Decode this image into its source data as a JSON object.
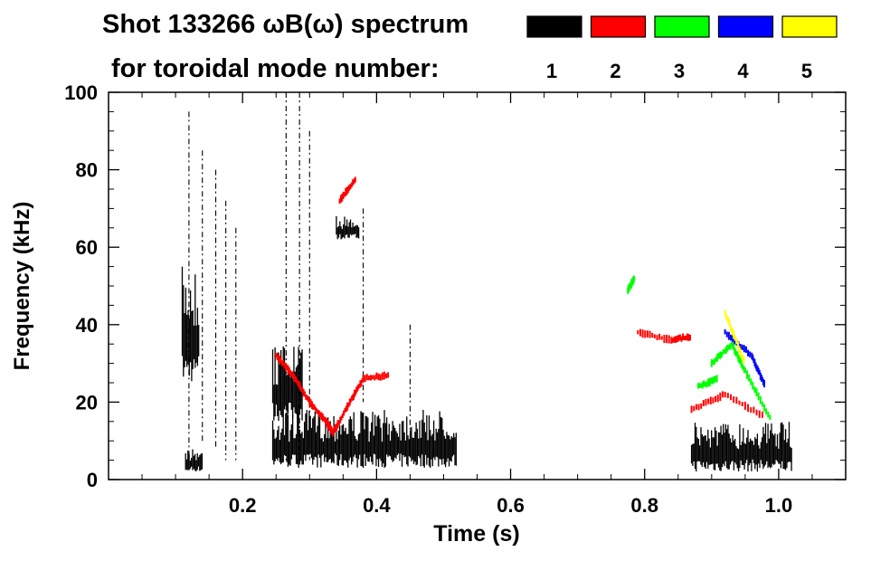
{
  "chart_data": {
    "type": "scatter",
    "title_line1": "Shot 133266 ωB(ω) spectrum",
    "title_line2": "for toroidal mode number:",
    "xlabel": "Time (s)",
    "ylabel": "Frequency (kHz)",
    "xlim": [
      0.0,
      1.1
    ],
    "ylim": [
      0,
      100
    ],
    "xticks": [
      {
        "value": 0.2,
        "label": "0.2"
      },
      {
        "value": 0.4,
        "label": "0.4"
      },
      {
        "value": 0.6,
        "label": "0.6"
      },
      {
        "value": 0.8,
        "label": "0.8"
      },
      {
        "value": 1.0,
        "label": "1.0"
      }
    ],
    "yticks": [
      {
        "value": 0,
        "label": "0"
      },
      {
        "value": 20,
        "label": "20"
      },
      {
        "value": 40,
        "label": "40"
      },
      {
        "value": 60,
        "label": "60"
      },
      {
        "value": 80,
        "label": "80"
      },
      {
        "value": 100,
        "label": "100"
      }
    ],
    "legend": [
      {
        "label": "1",
        "color": "#000000"
      },
      {
        "label": "2",
        "color": "#ff0000"
      },
      {
        "label": "3",
        "color": "#00ff00"
      },
      {
        "label": "4",
        "color": "#0000ff"
      },
      {
        "label": "5",
        "color": "#ffff00"
      }
    ],
    "series": [
      {
        "mode": 1,
        "color": "#000000",
        "regions": [
          {
            "t": [
              0.11,
              0.135
            ],
            "f": [
              25,
              55
            ]
          },
          {
            "t": [
              0.115,
              0.14
            ],
            "f": [
              2,
              8
            ]
          },
          {
            "t": [
              0.245,
              0.52
            ],
            "f": [
              3,
              18
            ]
          },
          {
            "t": [
              0.245,
              0.29
            ],
            "f": [
              15,
              35
            ]
          },
          {
            "t": [
              0.34,
              0.375
            ],
            "f": [
              62,
              68
            ]
          },
          {
            "t": [
              0.87,
              1.02
            ],
            "f": [
              2,
              15
            ]
          }
        ],
        "bursts": [
          {
            "t": 0.12,
            "f": [
              5,
              95
            ]
          },
          {
            "t": 0.14,
            "f": [
              10,
              85
            ]
          },
          {
            "t": 0.16,
            "f": [
              8,
              80
            ]
          },
          {
            "t": 0.175,
            "f": [
              5,
              72
            ]
          },
          {
            "t": 0.19,
            "f": [
              5,
              65
            ]
          },
          {
            "t": 0.265,
            "f": [
              5,
              100
            ]
          },
          {
            "t": 0.285,
            "f": [
              5,
              100
            ]
          },
          {
            "t": 0.3,
            "f": [
              5,
              90
            ]
          },
          {
            "t": 0.38,
            "f": [
              20,
              70
            ]
          },
          {
            "t": 0.45,
            "f": [
              10,
              40
            ]
          }
        ]
      },
      {
        "mode": 2,
        "color": "#ff0000",
        "tracks": [
          {
            "t": [
              0.25,
              0.275,
              0.3,
              0.325,
              0.335
            ],
            "f": [
              32,
              27,
              20,
              15,
              12
            ]
          },
          {
            "t": [
              0.335,
              0.36,
              0.38,
              0.42
            ],
            "f": [
              12,
              20,
              26,
              27
            ]
          },
          {
            "t": [
              0.345,
              0.37
            ],
            "f": [
              72,
              78
            ]
          },
          {
            "t": [
              0.79,
              0.84,
              0.87
            ],
            "f": [
              38,
              36,
              37
            ]
          },
          {
            "t": [
              0.87,
              0.92,
              0.98
            ],
            "f": [
              18,
              22,
              16
            ]
          }
        ]
      },
      {
        "mode": 3,
        "color": "#00ff00",
        "tracks": [
          {
            "t": [
              0.775,
              0.785
            ],
            "f": [
              49,
              52
            ]
          },
          {
            "t": [
              0.9,
              0.93,
              0.95,
              0.99
            ],
            "f": [
              30,
              35,
              28,
              15
            ]
          },
          {
            "t": [
              0.88,
              0.91
            ],
            "f": [
              24,
              26
            ]
          }
        ]
      },
      {
        "mode": 4,
        "color": "#0000ff",
        "tracks": [
          {
            "t": [
              0.92,
              0.96,
              0.98
            ],
            "f": [
              38,
              32,
              24
            ]
          }
        ]
      },
      {
        "mode": 5,
        "color": "#ffff00",
        "tracks": [
          {
            "t": [
              0.92,
              0.95
            ],
            "f": [
              43,
              30
            ]
          }
        ]
      }
    ]
  }
}
